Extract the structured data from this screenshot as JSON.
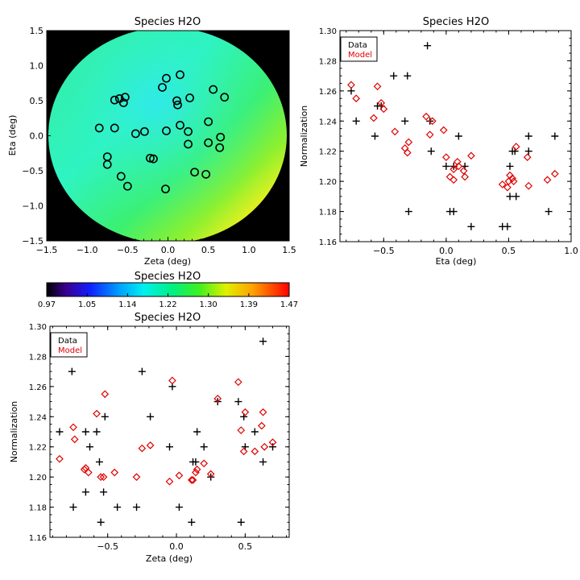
{
  "colors": {
    "data": "#000000",
    "model": "#e00000",
    "fill_bg": "#000000"
  },
  "chart_data": [
    {
      "type": "scatter",
      "id": "map",
      "title": "Species H2O",
      "xlabel": "Zeta (deg)",
      "ylabel": "Eta (deg)",
      "xlim": [
        -1.5,
        1.5
      ],
      "ylim": [
        -1.5,
        1.5
      ],
      "xticks": [
        "−1.5",
        "−1.0",
        "−0.5",
        "0.0",
        "0.5",
        "1.0",
        "1.5"
      ],
      "yticks": [
        "−1.5",
        "−1.0",
        "−0.5",
        "0.0",
        "0.5",
        "1.0",
        "1.5"
      ],
      "points": [
        {
          "x": -0.02,
          "y": 0.82
        },
        {
          "x": 0.15,
          "y": 0.87
        },
        {
          "x": -0.07,
          "y": 0.69
        },
        {
          "x": 0.56,
          "y": 0.66
        },
        {
          "x": 0.7,
          "y": 0.55
        },
        {
          "x": 0.27,
          "y": 0.54
        },
        {
          "x": 0.11,
          "y": 0.5
        },
        {
          "x": 0.12,
          "y": 0.44
        },
        {
          "x": -0.66,
          "y": 0.51
        },
        {
          "x": -0.6,
          "y": 0.53
        },
        {
          "x": -0.55,
          "y": 0.47
        },
        {
          "x": -0.53,
          "y": 0.55
        },
        {
          "x": 0.5,
          "y": 0.2
        },
        {
          "x": 0.15,
          "y": 0.15
        },
        {
          "x": -0.85,
          "y": 0.11
        },
        {
          "x": -0.66,
          "y": 0.11
        },
        {
          "x": -0.4,
          "y": 0.03
        },
        {
          "x": -0.29,
          "y": 0.06
        },
        {
          "x": -0.02,
          "y": 0.07
        },
        {
          "x": 0.25,
          "y": 0.06
        },
        {
          "x": 0.65,
          "y": -0.02
        },
        {
          "x": 0.5,
          "y": -0.1
        },
        {
          "x": 0.25,
          "y": -0.12
        },
        {
          "x": 0.64,
          "y": -0.17
        },
        {
          "x": -0.75,
          "y": -0.3
        },
        {
          "x": -0.22,
          "y": -0.32
        },
        {
          "x": -0.18,
          "y": -0.33
        },
        {
          "x": -0.75,
          "y": -0.41
        },
        {
          "x": 0.33,
          "y": -0.52
        },
        {
          "x": 0.47,
          "y": -0.55
        },
        {
          "x": -0.58,
          "y": -0.58
        },
        {
          "x": -0.5,
          "y": -0.72
        },
        {
          "x": -0.03,
          "y": -0.76
        }
      ]
    },
    {
      "type": "colorbar",
      "id": "colorbar",
      "title": "Species H2O",
      "tick_labels": [
        "0.97",
        "1.05",
        "1.14",
        "1.22",
        "1.30",
        "1.39",
        "1.47"
      ],
      "range": [
        0.97,
        1.47
      ]
    },
    {
      "type": "scatter",
      "id": "eta",
      "title": "Species H2O",
      "xlabel": "Eta (deg)",
      "ylabel": "Normalization",
      "xlim": [
        -0.85,
        1.0
      ],
      "ylim": [
        1.16,
        1.3
      ],
      "xticks": [
        -0.5,
        0.0,
        0.5,
        1.0
      ],
      "xtick_labels": [
        "−0.5",
        "0.0",
        "0.5",
        "1.0"
      ],
      "yticks": [
        1.16,
        1.18,
        1.2,
        1.22,
        1.24,
        1.26,
        1.28,
        1.3
      ],
      "ytick_labels": [
        "1.16",
        "1.18",
        "1.20",
        "1.22",
        "1.24",
        "1.26",
        "1.28",
        "1.30"
      ],
      "legend": {
        "position": "top-left",
        "items": [
          "Data",
          "Model"
        ]
      },
      "series": [
        {
          "name": "Data",
          "marker": "plus",
          "points": [
            {
              "x": -0.76,
              "y": 1.26
            },
            {
              "x": -0.72,
              "y": 1.24
            },
            {
              "x": -0.57,
              "y": 1.23
            },
            {
              "x": -0.55,
              "y": 1.25
            },
            {
              "x": -0.52,
              "y": 1.25
            },
            {
              "x": -0.42,
              "y": 1.27
            },
            {
              "x": -0.33,
              "y": 1.24
            },
            {
              "x": -0.31,
              "y": 1.27
            },
            {
              "x": -0.3,
              "y": 1.18
            },
            {
              "x": -0.15,
              "y": 1.29
            },
            {
              "x": -0.13,
              "y": 1.24
            },
            {
              "x": -0.12,
              "y": 1.22
            },
            {
              "x": 0.0,
              "y": 1.21
            },
            {
              "x": 0.03,
              "y": 1.18
            },
            {
              "x": 0.06,
              "y": 1.21
            },
            {
              "x": 0.06,
              "y": 1.18
            },
            {
              "x": 0.1,
              "y": 1.23
            },
            {
              "x": 0.15,
              "y": 1.21
            },
            {
              "x": 0.2,
              "y": 1.17
            },
            {
              "x": 0.45,
              "y": 1.17
            },
            {
              "x": 0.49,
              "y": 1.17
            },
            {
              "x": 0.51,
              "y": 1.21
            },
            {
              "x": 0.51,
              "y": 1.19
            },
            {
              "x": 0.53,
              "y": 1.22
            },
            {
              "x": 0.55,
              "y": 1.22
            },
            {
              "x": 0.56,
              "y": 1.19
            },
            {
              "x": 0.66,
              "y": 1.23
            },
            {
              "x": 0.66,
              "y": 1.22
            },
            {
              "x": 0.82,
              "y": 1.18
            },
            {
              "x": 0.87,
              "y": 1.23
            }
          ]
        },
        {
          "name": "Model",
          "marker": "diamond",
          "points": [
            {
              "x": -0.76,
              "y": 1.264
            },
            {
              "x": -0.72,
              "y": 1.255
            },
            {
              "x": -0.58,
              "y": 1.242
            },
            {
              "x": -0.55,
              "y": 1.263
            },
            {
              "x": -0.52,
              "y": 1.252
            },
            {
              "x": -0.5,
              "y": 1.248
            },
            {
              "x": -0.41,
              "y": 1.233
            },
            {
              "x": -0.33,
              "y": 1.222
            },
            {
              "x": -0.31,
              "y": 1.219
            },
            {
              "x": -0.3,
              "y": 1.226
            },
            {
              "x": -0.16,
              "y": 1.243
            },
            {
              "x": -0.13,
              "y": 1.231
            },
            {
              "x": -0.11,
              "y": 1.24
            },
            {
              "x": -0.02,
              "y": 1.234
            },
            {
              "x": 0.0,
              "y": 1.216
            },
            {
              "x": 0.03,
              "y": 1.203
            },
            {
              "x": 0.06,
              "y": 1.201
            },
            {
              "x": 0.06,
              "y": 1.208
            },
            {
              "x": 0.09,
              "y": 1.213
            },
            {
              "x": 0.1,
              "y": 1.21
            },
            {
              "x": 0.14,
              "y": 1.207
            },
            {
              "x": 0.15,
              "y": 1.203
            },
            {
              "x": 0.2,
              "y": 1.217
            },
            {
              "x": 0.45,
              "y": 1.198
            },
            {
              "x": 0.49,
              "y": 1.196
            },
            {
              "x": 0.5,
              "y": 1.2
            },
            {
              "x": 0.51,
              "y": 1.204
            },
            {
              "x": 0.53,
              "y": 1.202
            },
            {
              "x": 0.54,
              "y": 1.2
            },
            {
              "x": 0.56,
              "y": 1.223
            },
            {
              "x": 0.65,
              "y": 1.216
            },
            {
              "x": 0.66,
              "y": 1.197
            },
            {
              "x": 0.81,
              "y": 1.201
            },
            {
              "x": 0.87,
              "y": 1.205
            }
          ]
        }
      ]
    },
    {
      "type": "scatter",
      "id": "zeta",
      "title": "Species H2O",
      "xlabel": "Zeta (deg)",
      "ylabel": "Normalization",
      "xlim": [
        -0.92,
        0.82
      ],
      "ylim": [
        1.16,
        1.3
      ],
      "xticks": [
        -0.5,
        0.0,
        0.5
      ],
      "xtick_labels": [
        "−0.5",
        "0.0",
        "0.5"
      ],
      "yticks": [
        1.16,
        1.18,
        1.2,
        1.22,
        1.24,
        1.26,
        1.28,
        1.3
      ],
      "ytick_labels": [
        "1.16",
        "1.18",
        "1.20",
        "1.22",
        "1.24",
        "1.26",
        "1.28",
        "1.30"
      ],
      "legend": {
        "position": "top-left",
        "items": [
          "Data",
          "Model"
        ]
      },
      "series": [
        {
          "name": "Data",
          "marker": "plus",
          "points": [
            {
              "x": -0.85,
              "y": 1.23
            },
            {
              "x": -0.76,
              "y": 1.27
            },
            {
              "x": -0.75,
              "y": 1.18
            },
            {
              "x": -0.66,
              "y": 1.23
            },
            {
              "x": -0.66,
              "y": 1.19
            },
            {
              "x": -0.63,
              "y": 1.22
            },
            {
              "x": -0.58,
              "y": 1.23
            },
            {
              "x": -0.56,
              "y": 1.21
            },
            {
              "x": -0.55,
              "y": 1.17
            },
            {
              "x": -0.53,
              "y": 1.19
            },
            {
              "x": -0.52,
              "y": 1.24
            },
            {
              "x": -0.43,
              "y": 1.18
            },
            {
              "x": -0.29,
              "y": 1.18
            },
            {
              "x": -0.25,
              "y": 1.27
            },
            {
              "x": -0.19,
              "y": 1.24
            },
            {
              "x": -0.05,
              "y": 1.22
            },
            {
              "x": -0.03,
              "y": 1.26
            },
            {
              "x": 0.02,
              "y": 1.18
            },
            {
              "x": 0.11,
              "y": 1.17
            },
            {
              "x": 0.12,
              "y": 1.21
            },
            {
              "x": 0.14,
              "y": 1.21
            },
            {
              "x": 0.15,
              "y": 1.23
            },
            {
              "x": 0.2,
              "y": 1.22
            },
            {
              "x": 0.25,
              "y": 1.2
            },
            {
              "x": 0.3,
              "y": 1.25
            },
            {
              "x": 0.45,
              "y": 1.25
            },
            {
              "x": 0.47,
              "y": 1.17
            },
            {
              "x": 0.49,
              "y": 1.24
            },
            {
              "x": 0.5,
              "y": 1.22
            },
            {
              "x": 0.57,
              "y": 1.23
            },
            {
              "x": 0.63,
              "y": 1.29
            },
            {
              "x": 0.63,
              "y": 1.21
            },
            {
              "x": 0.7,
              "y": 1.22
            }
          ]
        },
        {
          "name": "Model",
          "marker": "diamond",
          "points": [
            {
              "x": -0.85,
              "y": 1.212
            },
            {
              "x": -0.75,
              "y": 1.233
            },
            {
              "x": -0.74,
              "y": 1.225
            },
            {
              "x": -0.67,
              "y": 1.205
            },
            {
              "x": -0.66,
              "y": 1.206
            },
            {
              "x": -0.64,
              "y": 1.203
            },
            {
              "x": -0.58,
              "y": 1.242
            },
            {
              "x": -0.55,
              "y": 1.2
            },
            {
              "x": -0.53,
              "y": 1.2
            },
            {
              "x": -0.52,
              "y": 1.255
            },
            {
              "x": -0.45,
              "y": 1.203
            },
            {
              "x": -0.29,
              "y": 1.2
            },
            {
              "x": -0.25,
              "y": 1.219
            },
            {
              "x": -0.19,
              "y": 1.221
            },
            {
              "x": -0.05,
              "y": 1.197
            },
            {
              "x": -0.03,
              "y": 1.264
            },
            {
              "x": 0.02,
              "y": 1.201
            },
            {
              "x": 0.11,
              "y": 1.198
            },
            {
              "x": 0.12,
              "y": 1.198
            },
            {
              "x": 0.14,
              "y": 1.203
            },
            {
              "x": 0.15,
              "y": 1.205
            },
            {
              "x": 0.2,
              "y": 1.209
            },
            {
              "x": 0.25,
              "y": 1.202
            },
            {
              "x": 0.3,
              "y": 1.252
            },
            {
              "x": 0.45,
              "y": 1.263
            },
            {
              "x": 0.47,
              "y": 1.231
            },
            {
              "x": 0.49,
              "y": 1.217
            },
            {
              "x": 0.5,
              "y": 1.243
            },
            {
              "x": 0.57,
              "y": 1.217
            },
            {
              "x": 0.62,
              "y": 1.234
            },
            {
              "x": 0.63,
              "y": 1.243
            },
            {
              "x": 0.64,
              "y": 1.22
            },
            {
              "x": 0.7,
              "y": 1.223
            }
          ]
        }
      ]
    }
  ]
}
